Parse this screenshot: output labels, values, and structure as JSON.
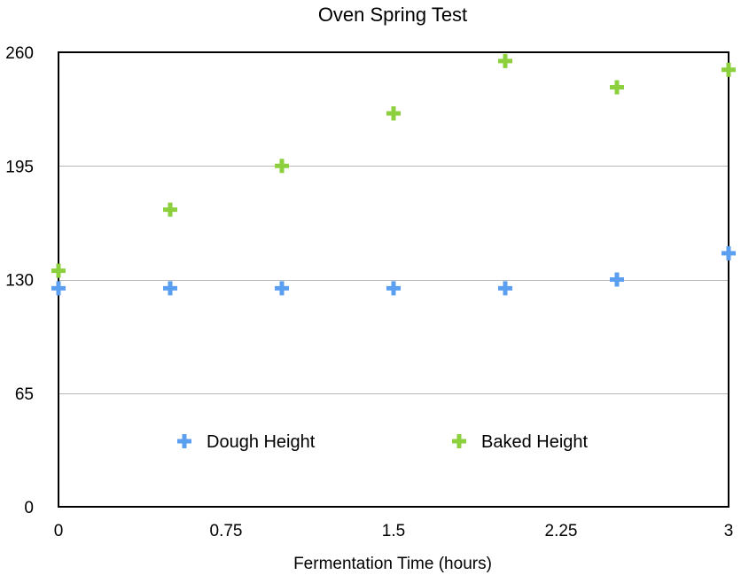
{
  "chart_data": {
    "type": "scatter",
    "title": "Oven Spring Test",
    "xlabel": "Fermentation Time (hours)",
    "ylabel": "",
    "xlim": [
      0,
      3
    ],
    "ylim": [
      0,
      260
    ],
    "xticks": [
      0,
      0.75,
      1.5,
      2.25,
      3
    ],
    "xtick_labels": [
      "0",
      "0.75",
      "1.5",
      "2.25",
      "3"
    ],
    "yticks": [
      0,
      65,
      130,
      195,
      260
    ],
    "ytick_labels": [
      "0",
      "65",
      "130",
      "195",
      "260"
    ],
    "grid": "horizontal",
    "legend_position": "inside-lower-center",
    "marker": "plus",
    "x": [
      0,
      0.5,
      1,
      1.5,
      2,
      2.5,
      3
    ],
    "series": [
      {
        "name": "Dough Height",
        "color": "#5b9ff0",
        "values": [
          125,
          125,
          125,
          125,
          125,
          130,
          145
        ]
      },
      {
        "name": "Baked Height",
        "color": "#8cd13d",
        "values": [
          135,
          170,
          195,
          225,
          255,
          240,
          250
        ]
      }
    ]
  }
}
